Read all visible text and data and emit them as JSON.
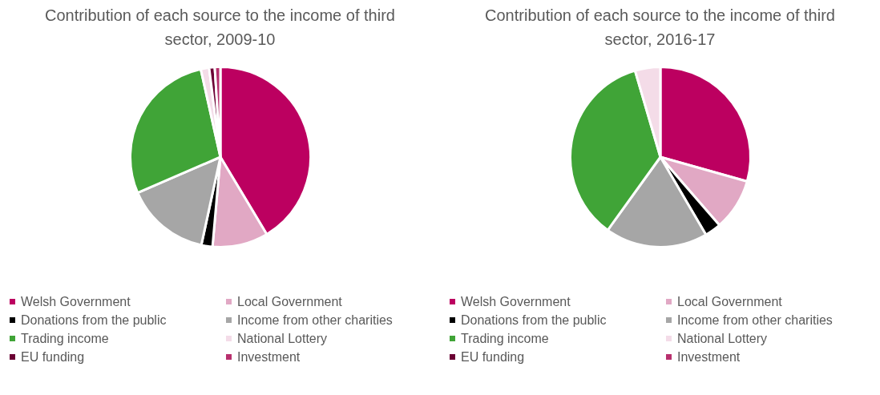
{
  "chart_data": [
    {
      "type": "pie",
      "title": "Contribution of each source to the income of third sector, 2009-10",
      "categories": [
        "Welsh Government",
        "Local Government",
        "Donations from the public",
        "Income from other charities",
        "Trading income",
        "National Lottery",
        "EU funding",
        "Investment"
      ],
      "values": [
        41.4,
        10,
        2,
        15.1,
        28,
        1.5,
        1,
        1
      ],
      "colors": [
        "#bc0060",
        "#e1a8c4",
        "#000000",
        "#a6a6a6",
        "#40a437",
        "#f4dce8",
        "#6b0034",
        "#b8306e"
      ],
      "legend": "bottom"
    },
    {
      "type": "pie",
      "title": "Contribution of each source to the income of third sector, 2016-17",
      "categories": [
        "Welsh Government",
        "Local Government",
        "Donations from the public",
        "Income from other charities",
        "Trading income",
        "National Lottery",
        "EU funding",
        "Investment"
      ],
      "values": [
        29.1,
        9.2,
        2.9,
        18.2,
        35.2,
        4.5,
        null,
        null
      ],
      "colors": [
        "#bc0060",
        "#e1a8c4",
        "#000000",
        "#a6a6a6",
        "#40a437",
        "#f4dce8",
        "#6b0034",
        "#b8306e"
      ],
      "legend": "bottom"
    }
  ]
}
